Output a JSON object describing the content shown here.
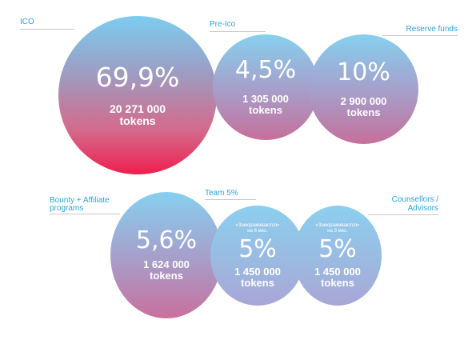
{
  "labels": {
    "ico": "ICO",
    "preico": "Pre-Ico",
    "reserve": "Reserve funds",
    "bounty_line1": "Bounty + Affiliate",
    "bounty_line2": "programs",
    "team": "Team 5%",
    "couns_line1": "Counsellors /",
    "couns_line2": "Advisors"
  },
  "circles": {
    "ico": {
      "percent": "69,9%",
      "amount": "20 271 000",
      "unit": "tokens"
    },
    "preico": {
      "percent": "4,5%",
      "amount": "1 305 000",
      "unit": "tokens"
    },
    "reserve": {
      "percent": "10%",
      "amount": "2 900 000",
      "unit": "tokens"
    },
    "bounty": {
      "percent": "5,6%",
      "amount": "1 624 000",
      "unit": "tokens"
    },
    "team": {
      "note_line1": "«Замораживаются»",
      "note_line2": "на 6 мес.",
      "percent": "5%",
      "amount": "1 450 000",
      "unit": "tokens"
    },
    "couns": {
      "note_line1": "«Замораживаются»",
      "note_line2": "на 3 мес.",
      "percent": "5%",
      "amount": "1 450 000",
      "unit": "tokens"
    }
  },
  "colors": {
    "label_text": "#2aa5dc",
    "ico_bottom": "#ee1f4e",
    "circle_top": "#86d0f0",
    "circle_bottom": "#c66f9b"
  }
}
